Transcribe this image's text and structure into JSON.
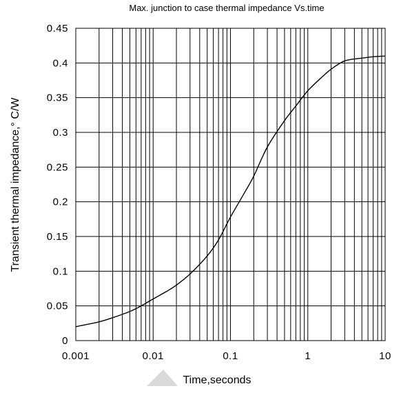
{
  "chart_data": {
    "type": "line",
    "title": "Max. junction to case thermal impedance Vs.time",
    "xlabel": "Time,seconds",
    "ylabel": "Transient  thermal  impedance,° C/W",
    "x_scale": "log",
    "xlim": [
      0.001,
      10
    ],
    "ylim": [
      0,
      0.45
    ],
    "grid": true,
    "x_tick_labels": [
      "0.001",
      "0.01",
      "0.1",
      "1",
      "10"
    ],
    "y_tick_labels": [
      "0",
      "0.05",
      "0.1",
      "0.15",
      "0.2",
      "0.25",
      "0.3",
      "0.35",
      "0.4",
      "0.45"
    ],
    "series": [
      {
        "x": [
          0.001,
          0.0015,
          0.002,
          0.003,
          0.005,
          0.007,
          0.01,
          0.015,
          0.02,
          0.03,
          0.05,
          0.07,
          0.1,
          0.15,
          0.2,
          0.3,
          0.5,
          0.7,
          1,
          1.5,
          2,
          3,
          5,
          7,
          10
        ],
        "y": [
          0.02,
          0.024,
          0.027,
          0.033,
          0.042,
          0.05,
          0.06,
          0.071,
          0.08,
          0.096,
          0.122,
          0.145,
          0.178,
          0.212,
          0.237,
          0.279,
          0.317,
          0.338,
          0.36,
          0.379,
          0.391,
          0.403,
          0.407,
          0.409,
          0.41
        ]
      }
    ]
  }
}
